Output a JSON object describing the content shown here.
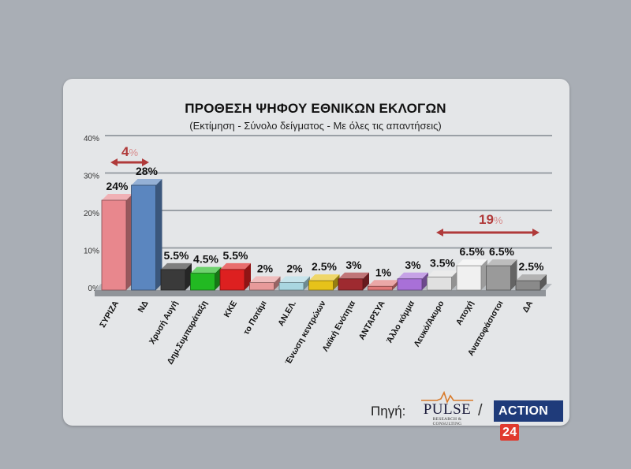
{
  "header": {
    "title": "ΠΡΟΘΕΣΗ ΨΗΦΟΥ ΕΘΝΙΚΩΝ ΕΚΛΟΓΩΝ",
    "subtitle": "(Εκτίμηση - Σύνολο δείγματος - Με όλες τις απαντήσεις)"
  },
  "annotations": {
    "gap_left_value": "4",
    "gap_left_unit": "%",
    "gap_right_value": "19",
    "gap_right_unit": "%",
    "color": "#b03a3a"
  },
  "footer": {
    "source_label": "Πηγή:",
    "pulse_name": "PULSE",
    "pulse_sub": "RESEARCH & CONSULTING",
    "separator": "/",
    "action_text": "ACTION",
    "action_num": "24"
  },
  "chart_data": {
    "type": "bar",
    "title": "ΠΡΟΘΕΣΗ ΨΗΦΟΥ ΕΘΝΙΚΩΝ ΕΚΛΟΓΩΝ",
    "subtitle": "(Εκτίμηση - Σύνολο δείγματος - Με όλες τις απαντήσεις)",
    "xlabel": "",
    "ylabel": "",
    "ylim": [
      0,
      40
    ],
    "yticks": [
      "0%",
      "10%",
      "20%",
      "30%",
      "40%"
    ],
    "grid": true,
    "categories": [
      "ΣΥΡΙΖΑ",
      "ΝΔ",
      "Χρυσή Αυγή",
      "Δημ.Συμπαράταξη",
      "ΚΚΕ",
      "το Ποτάμι",
      "ΑΝ.ΕΛ.",
      "Ένωση κεντρώων",
      "Λαϊκή Ενότητα",
      "ΑΝΤΑΡΣΥΑ",
      "Άλλο κόμμα",
      "Λευκό/Άκυρο",
      "Αποχή",
      "Αναποφάσιστοι",
      "ΔΑ"
    ],
    "values": [
      24,
      28,
      5.5,
      4.5,
      5.5,
      2,
      2,
      2.5,
      3,
      1,
      3,
      3.5,
      6.5,
      6.5,
      2.5
    ],
    "labels": [
      "24%",
      "28%",
      "5.5%",
      "4.5%",
      "5.5%",
      "2%",
      "2%",
      "2.5%",
      "3%",
      "1%",
      "3%",
      "3.5%",
      "6.5%",
      "6.5%",
      "2.5%"
    ],
    "colors": [
      "#e8878d",
      "#5b86bf",
      "#3a3a3a",
      "#22b922",
      "#dd2020",
      "#e89a9a",
      "#a9d6e0",
      "#e6c21a",
      "#9e2a30",
      "#e07878",
      "#a870d8",
      "#e0e0e0",
      "#f0f0f0",
      "#9a9a9a",
      "#8a8a8a"
    ]
  }
}
